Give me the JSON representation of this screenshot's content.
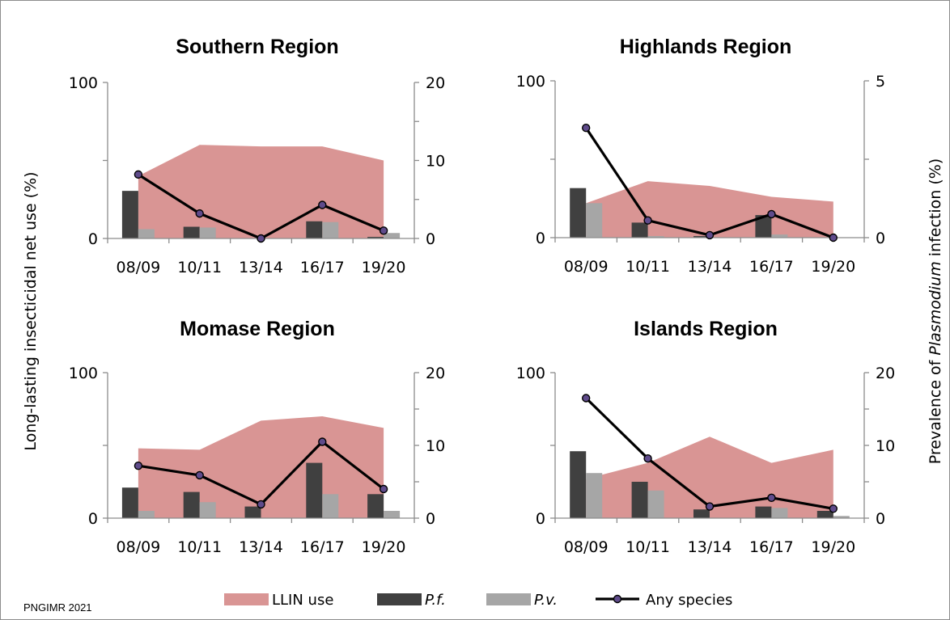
{
  "y_left_label": "Long-lasting insecticidal net use (%)",
  "y_right_label": {
    "prefix": "Prevalence of ",
    "italic": "Plasmodium",
    "suffix": " infection (%)"
  },
  "credit": "PNGIMR 2021",
  "colors": {
    "llin": "#d99594",
    "pf": "#404040",
    "pv": "#a6a6a6",
    "line": "#000000",
    "marker_fill": "#5f4b8b"
  },
  "legend": [
    {
      "key": "llin",
      "label": "LLIN use",
      "italic": false
    },
    {
      "key": "pf",
      "label": "P.f.",
      "italic": true
    },
    {
      "key": "pv",
      "label": "P.v.",
      "italic": true
    },
    {
      "key": "any",
      "label": "Any species",
      "italic": false
    }
  ],
  "chart_data": [
    {
      "type": "bar",
      "title": "Southern Region",
      "categories": [
        "08/09",
        "10/11",
        "13/14",
        "16/17",
        "19/20"
      ],
      "ylim_left": [
        0,
        100
      ],
      "ylim_right": [
        0,
        20
      ],
      "left_ticks": [
        0,
        100
      ],
      "right_ticks": [
        0,
        10,
        20
      ],
      "series": [
        {
          "name": "LLIN use",
          "kind": "area",
          "axis": "left",
          "values": [
            40,
            60,
            59,
            59,
            50
          ]
        },
        {
          "name": "P.f.",
          "kind": "bar",
          "axis": "right",
          "values": [
            6.1,
            1.5,
            0,
            2.2,
            0.2
          ]
        },
        {
          "name": "P.v.",
          "kind": "bar",
          "axis": "right",
          "values": [
            1.2,
            1.4,
            0,
            2.1,
            0.7
          ]
        },
        {
          "name": "Any species",
          "kind": "line",
          "axis": "right",
          "values": [
            8.2,
            3.2,
            0,
            4.3,
            1.0
          ]
        }
      ]
    },
    {
      "type": "bar",
      "title": "Highlands Region",
      "categories": [
        "08/09",
        "10/11",
        "13/14",
        "16/17",
        "19/20"
      ],
      "ylim_left": [
        0,
        100
      ],
      "ylim_right": [
        0,
        5
      ],
      "left_ticks": [
        0,
        100
      ],
      "right_ticks": [
        0,
        5
      ],
      "series": [
        {
          "name": "LLIN use",
          "kind": "area",
          "axis": "left",
          "values": [
            22,
            36,
            33,
            26,
            23
          ]
        },
        {
          "name": "P.f.",
          "kind": "bar",
          "axis": "right",
          "values": [
            1.58,
            0.48,
            0.05,
            0.72,
            0
          ]
        },
        {
          "name": "P.v.",
          "kind": "bar",
          "axis": "right",
          "values": [
            1.1,
            0.05,
            0,
            0.1,
            0
          ]
        },
        {
          "name": "Any species",
          "kind": "line",
          "axis": "right",
          "values": [
            3.5,
            0.55,
            0.08,
            0.75,
            0
          ]
        }
      ]
    },
    {
      "type": "bar",
      "title": "Momase Region",
      "categories": [
        "08/09",
        "10/11",
        "13/14",
        "16/17",
        "19/20"
      ],
      "ylim_left": [
        0,
        100
      ],
      "ylim_right": [
        0,
        20
      ],
      "left_ticks": [
        0,
        100
      ],
      "right_ticks": [
        0,
        10,
        20
      ],
      "series": [
        {
          "name": "LLIN use",
          "kind": "area",
          "axis": "left",
          "values": [
            48,
            47,
            67,
            70,
            62
          ]
        },
        {
          "name": "P.f.",
          "kind": "bar",
          "axis": "right",
          "values": [
            4.2,
            3.6,
            1.6,
            7.6,
            3.3
          ]
        },
        {
          "name": "P.v.",
          "kind": "bar",
          "axis": "right",
          "values": [
            1.0,
            2.2,
            0,
            3.3,
            1.0
          ]
        },
        {
          "name": "Any species",
          "kind": "line",
          "axis": "right",
          "values": [
            7.2,
            5.9,
            1.9,
            10.5,
            4.0
          ]
        }
      ]
    },
    {
      "type": "bar",
      "title": "Islands Region",
      "categories": [
        "08/09",
        "10/11",
        "13/14",
        "16/17",
        "19/20"
      ],
      "ylim_left": [
        0,
        100
      ],
      "ylim_right": [
        0,
        20
      ],
      "left_ticks": [
        0,
        100
      ],
      "right_ticks": [
        0,
        10,
        20
      ],
      "series": [
        {
          "name": "LLIN use",
          "kind": "area",
          "axis": "left",
          "values": [
            27,
            38,
            56,
            38,
            47
          ]
        },
        {
          "name": "P.f.",
          "kind": "bar",
          "axis": "right",
          "values": [
            9.2,
            5.0,
            1.2,
            1.6,
            1.0
          ]
        },
        {
          "name": "P.v.",
          "kind": "bar",
          "axis": "right",
          "values": [
            6.2,
            3.8,
            0,
            1.4,
            0.3
          ]
        },
        {
          "name": "Any species",
          "kind": "line",
          "axis": "right",
          "values": [
            16.5,
            8.2,
            1.6,
            2.8,
            1.3
          ]
        }
      ]
    }
  ]
}
